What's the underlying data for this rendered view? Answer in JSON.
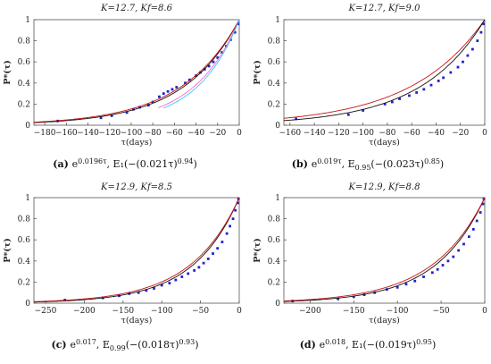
{
  "chart_data": [
    {
      "type": "scatter",
      "title": "K=12.7, Kf=8.6",
      "xlabel": "τ(days)",
      "ylabel": "P*(τ)",
      "xlim": [
        -190,
        0
      ],
      "ylim": [
        0,
        1
      ],
      "xticks": [
        -180,
        -160,
        -140,
        -120,
        -100,
        -80,
        -60,
        -40,
        -20,
        0
      ],
      "yticks": [
        0,
        0.2,
        0.4,
        0.6,
        0.8,
        1
      ],
      "caption": {
        "label": "(a)",
        "text": "e^{0.0196τ}, E₁(−(0.021τ)^{0.94})"
      },
      "series": [
        {
          "kind": "points",
          "color": "#2222cc",
          "values": [
            [
              -168,
              0.04
            ],
            [
              -128,
              0.07
            ],
            [
              -118,
              0.09
            ],
            [
              -104,
              0.12
            ],
            [
              -98,
              0.15
            ],
            [
              -92,
              0.17
            ],
            [
              -84,
              0.19
            ],
            [
              -80,
              0.22
            ],
            [
              -74,
              0.27
            ],
            [
              -70,
              0.3
            ],
            [
              -66,
              0.32
            ],
            [
              -62,
              0.34
            ],
            [
              -58,
              0.36
            ],
            [
              -50,
              0.4
            ],
            [
              -46,
              0.43
            ],
            [
              -40,
              0.47
            ],
            [
              -36,
              0.5
            ],
            [
              -32,
              0.53
            ],
            [
              -28,
              0.56
            ],
            [
              -24,
              0.6
            ],
            [
              -20,
              0.64
            ],
            [
              -16,
              0.69
            ],
            [
              -12,
              0.75
            ],
            [
              -8,
              0.81
            ],
            [
              -4,
              0.88
            ],
            [
              -1,
              0.96
            ]
          ]
        },
        {
          "kind": "curve",
          "color": "#111111",
          "model": "exp",
          "rate": 0.0196
        },
        {
          "kind": "curve",
          "color": "#cc1111",
          "model": "exp",
          "rate": 0.0187
        },
        {
          "kind": "curve",
          "color": "#ff66cc",
          "model": "exp",
          "rate": 0.024,
          "xmin": -75
        },
        {
          "kind": "curve",
          "color": "#33ccff",
          "model": "exp",
          "rate": 0.026,
          "xmin": -70
        }
      ]
    },
    {
      "type": "scatter",
      "title": "K=12.7, Kf=9.0",
      "xlabel": "τ(days)",
      "ylabel": "P*(τ)",
      "xlim": [
        -165,
        0
      ],
      "ylim": [
        0,
        1
      ],
      "xticks": [
        -160,
        -140,
        -120,
        -100,
        -80,
        -60,
        -40,
        -20,
        0
      ],
      "yticks": [
        0,
        0.2,
        0.4,
        0.6,
        0.8,
        1
      ],
      "caption": {
        "label": "(b)",
        "text": "e^{0.019τ}, E_{0.95}(−(0.023τ)^{0.85})"
      },
      "series": [
        {
          "kind": "points",
          "color": "#2222cc",
          "values": [
            [
              -155,
              0.06
            ],
            [
              -112,
              0.1
            ],
            [
              -100,
              0.14
            ],
            [
              -82,
              0.2
            ],
            [
              -76,
              0.22
            ],
            [
              -70,
              0.25
            ],
            [
              -62,
              0.28
            ],
            [
              -56,
              0.31
            ],
            [
              -50,
              0.34
            ],
            [
              -44,
              0.38
            ],
            [
              -38,
              0.42
            ],
            [
              -34,
              0.45
            ],
            [
              -28,
              0.5
            ],
            [
              -22,
              0.55
            ],
            [
              -18,
              0.6
            ],
            [
              -14,
              0.66
            ],
            [
              -10,
              0.72
            ],
            [
              -6,
              0.8
            ],
            [
              -3,
              0.88
            ],
            [
              -1,
              0.96
            ]
          ]
        },
        {
          "kind": "curve",
          "color": "#cc1111",
          "model": "exp",
          "rate": 0.0165
        },
        {
          "kind": "curve",
          "color": "#111111",
          "model": "exp",
          "rate": 0.019
        }
      ]
    },
    {
      "type": "scatter",
      "title": "K=12.9, Kf=8.5",
      "xlabel": "τ(days)",
      "ylabel": "P*(τ)",
      "xlim": [
        -265,
        0
      ],
      "ylim": [
        0,
        1
      ],
      "xticks": [
        -250,
        -200,
        -150,
        -100,
        -50,
        0
      ],
      "yticks": [
        0,
        0.2,
        0.4,
        0.6,
        0.8,
        1
      ],
      "caption": {
        "label": "(c)",
        "text": "e^{0.017}, E_{0.99}(−(0.018τ)^{0.93})"
      },
      "series": [
        {
          "kind": "points",
          "color": "#2222cc",
          "values": [
            [
              -225,
              0.03
            ],
            [
              -176,
              0.05
            ],
            [
              -155,
              0.07
            ],
            [
              -142,
              0.09
            ],
            [
              -130,
              0.1
            ],
            [
              -120,
              0.12
            ],
            [
              -110,
              0.14
            ],
            [
              -100,
              0.17
            ],
            [
              -90,
              0.19
            ],
            [
              -82,
              0.22
            ],
            [
              -74,
              0.25
            ],
            [
              -66,
              0.28
            ],
            [
              -58,
              0.31
            ],
            [
              -52,
              0.34
            ],
            [
              -46,
              0.38
            ],
            [
              -40,
              0.42
            ],
            [
              -34,
              0.47
            ],
            [
              -28,
              0.52
            ],
            [
              -22,
              0.58
            ],
            [
              -16,
              0.66
            ],
            [
              -12,
              0.73
            ],
            [
              -8,
              0.8
            ],
            [
              -5,
              0.88
            ],
            [
              -2,
              0.95
            ],
            [
              -1,
              0.99
            ]
          ]
        },
        {
          "kind": "curve",
          "color": "#111111",
          "model": "exp",
          "rate": 0.017
        },
        {
          "kind": "curve",
          "color": "#cc1111",
          "model": "exp",
          "rate": 0.016
        }
      ]
    },
    {
      "type": "scatter",
      "title": "K=12.9, Kf=8.8",
      "xlabel": "τ(days)",
      "ylabel": "P*(τ)",
      "xlim": [
        -230,
        0
      ],
      "ylim": [
        0,
        1
      ],
      "xticks": [
        -200,
        -150,
        -100,
        -50,
        0
      ],
      "yticks": [
        0,
        0.2,
        0.4,
        0.6,
        0.8,
        1
      ],
      "caption": {
        "label": "(d)",
        "text": "e^{0.018}, E₁(−(0.019τ)^{0.95})"
      },
      "series": [
        {
          "kind": "points",
          "color": "#2222cc",
          "values": [
            [
              -220,
              0.02
            ],
            [
              -168,
              0.04
            ],
            [
              -150,
              0.06
            ],
            [
              -138,
              0.08
            ],
            [
              -126,
              0.1
            ],
            [
              -112,
              0.13
            ],
            [
              -100,
              0.15
            ],
            [
              -90,
              0.18
            ],
            [
              -80,
              0.21
            ],
            [
              -70,
              0.25
            ],
            [
              -60,
              0.29
            ],
            [
              -54,
              0.32
            ],
            [
              -48,
              0.36
            ],
            [
              -42,
              0.4
            ],
            [
              -36,
              0.44
            ],
            [
              -30,
              0.5
            ],
            [
              -24,
              0.56
            ],
            [
              -18,
              0.63
            ],
            [
              -13,
              0.7
            ],
            [
              -9,
              0.78
            ],
            [
              -5,
              0.86
            ],
            [
              -2,
              0.94
            ],
            [
              -1,
              0.99
            ]
          ]
        },
        {
          "kind": "curve",
          "color": "#111111",
          "model": "exp",
          "rate": 0.018
        },
        {
          "kind": "curve",
          "color": "#cc1111",
          "model": "exp",
          "rate": 0.0168
        }
      ]
    }
  ]
}
